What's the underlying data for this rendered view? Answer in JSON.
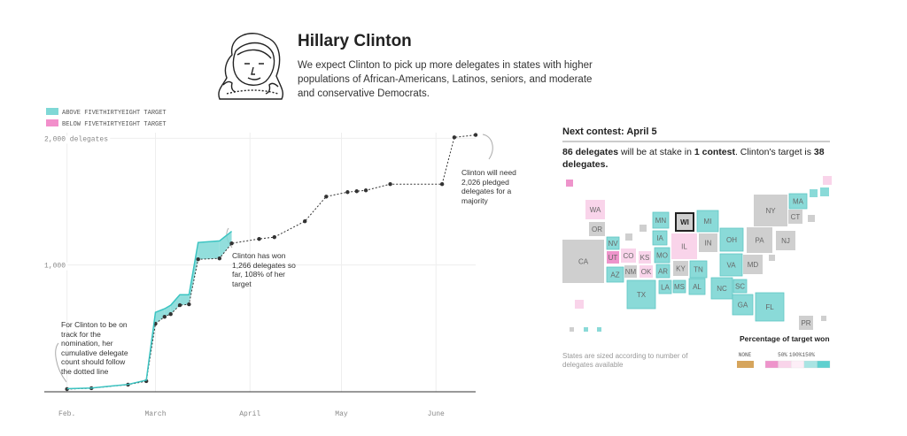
{
  "header": {
    "title": "Hillary Clinton",
    "description": "We expect Clinton to pick up more delegates in states with higher populations of African-Americans, Latinos, seniors, and moderate and conservative Democrats."
  },
  "chart_data": {
    "type": "line",
    "legend": [
      {
        "label": "ABOVE FIVETHIRTYEIGHT TARGET",
        "color": "#7fd8d6"
      },
      {
        "label": "BELOW FIVETHIRTYEIGHT TARGET",
        "color": "#f28fcb"
      }
    ],
    "x": [
      0,
      8,
      20,
      26,
      29,
      32,
      34,
      37,
      40,
      43,
      50,
      54,
      63,
      68,
      78,
      85,
      92,
      95,
      98,
      106,
      123,
      127,
      134
    ],
    "series": [
      {
        "color": "#333333",
        "style": "dotted",
        "values": [
          21,
          28,
          56,
          84,
          537,
          592,
          613,
          683,
          690,
          1045,
          1052,
          1171,
          1206,
          1220,
          1345,
          1540,
          1575,
          1582,
          1589,
          1638,
          1638,
          2007,
          2026
        ]
      },
      {
        "color": "#3cc4c2",
        "style": "solid",
        "values": [
          24,
          30,
          58,
          92,
          627,
          655,
          683,
          766,
          766,
          1178,
          1190,
          1266,
          null,
          null,
          null,
          null,
          null,
          null,
          null,
          null,
          null,
          null,
          null
        ]
      }
    ],
    "xlim": [
      -6,
      134
    ],
    "xticks": [
      {
        "value": 0,
        "label": "Feb."
      },
      {
        "value": 29,
        "label": "March"
      },
      {
        "value": 60,
        "label": "April"
      },
      {
        "value": 90,
        "label": "May"
      },
      {
        "value": 121,
        "label": "June"
      }
    ],
    "ylim": [
      0,
      2100
    ],
    "yticks": [
      {
        "value": 1000,
        "label": "1,000"
      },
      {
        "value": 2000,
        "label": "2,000 delegates"
      }
    ],
    "grid": true,
    "annotations": [
      "For Clinton to be on track for the nomination, her cumulative delegate count should follow the dotted line",
      "Clinton has won 1,266 delegates so far, 108% of her target",
      "Clinton will need 2,026 pledged delegates for a majority"
    ]
  },
  "next_contest": {
    "heading": "Next contest: April 5",
    "summary": [
      {
        "text": "86 delegates",
        "bold": true
      },
      {
        "text": " will be at stake in ",
        "bold": false
      },
      {
        "text": "1 contest",
        "bold": true
      },
      {
        "text": ". Clinton's target is ",
        "bold": false
      },
      {
        "text": "38 delegates.",
        "bold": true
      }
    ]
  },
  "map": {
    "states": [
      {
        "label": "WA",
        "color": "#f9d4ea"
      },
      {
        "label": "OR",
        "color": "#cfcfcf"
      },
      {
        "label": "CA",
        "color": "#cfcfcf"
      },
      {
        "label": "NV",
        "color": "#8adad8"
      },
      {
        "label": "UT",
        "color": "#ee94cb"
      },
      {
        "label": "AZ",
        "color": "#8adad8"
      },
      {
        "label": "CO",
        "color": "#f9d4ea"
      },
      {
        "label": "NM",
        "color": "#cfcfcf"
      },
      {
        "label": "KS",
        "color": "#f9d4ea"
      },
      {
        "label": "OK",
        "color": "#f9d4ea"
      },
      {
        "label": "TX",
        "color": "#8adad8"
      },
      {
        "label": "MN",
        "color": "#8adad8"
      },
      {
        "label": "IA",
        "color": "#8adad8"
      },
      {
        "label": "MO",
        "color": "#8adad8"
      },
      {
        "label": "AR",
        "color": "#8adad8"
      },
      {
        "label": "LA",
        "color": "#8adad8"
      },
      {
        "label": "MS",
        "color": "#8adad8"
      },
      {
        "label": "AL",
        "color": "#8adad8"
      },
      {
        "label": "WI",
        "color": "#cfcfcf",
        "next": true
      },
      {
        "label": "MI",
        "color": "#8adad8"
      },
      {
        "label": "IL",
        "color": "#f9d4ea"
      },
      {
        "label": "IN",
        "color": "#cfcfcf"
      },
      {
        "label": "KY",
        "color": "#cfcfcf"
      },
      {
        "label": "TN",
        "color": "#8adad8"
      },
      {
        "label": "OH",
        "color": "#8adad8"
      },
      {
        "label": "VA",
        "color": "#8adad8"
      },
      {
        "label": "NC",
        "color": "#8adad8"
      },
      {
        "label": "SC",
        "color": "#8adad8"
      },
      {
        "label": "GA",
        "color": "#8adad8"
      },
      {
        "label": "FL",
        "color": "#8adad8"
      },
      {
        "label": "MD",
        "color": "#cfcfcf"
      },
      {
        "label": "PA",
        "color": "#cfcfcf"
      },
      {
        "label": "NY",
        "color": "#cfcfcf"
      },
      {
        "label": "NJ",
        "color": "#cfcfcf"
      },
      {
        "label": "CT",
        "color": "#cfcfcf"
      },
      {
        "label": "MA",
        "color": "#8adad8"
      },
      {
        "label": "PR",
        "color": "#cfcfcf"
      }
    ],
    "unlabeled": [
      {
        "color": "#ee94cb"
      },
      {
        "color": "#f9d4ea"
      },
      {
        "color": "#cfcfcf"
      },
      {
        "color": "#8adad8"
      },
      {
        "color": "#8adad8"
      },
      {
        "color": "#cfcfcf"
      },
      {
        "color": "#cfcfcf"
      },
      {
        "color": "#8adad8"
      },
      {
        "color": "#8adad8"
      },
      {
        "color": "#f9d4ea"
      },
      {
        "color": "#cfcfcf"
      },
      {
        "color": "#cfcfcf"
      },
      {
        "color": "#cfcfcf"
      }
    ],
    "note": "States are sized according to number of delegates available",
    "legend_title": "Percentage of target won",
    "legend_none": {
      "label": "NONE",
      "color": "#d6a55c"
    },
    "legend_scale": {
      "colors": [
        "#ee94cb",
        "#f9d4ea",
        "#fdeef7",
        "#a9e4e3",
        "#5fd0cf"
      ],
      "labels": [
        "50%",
        "100%",
        "150%"
      ]
    }
  }
}
